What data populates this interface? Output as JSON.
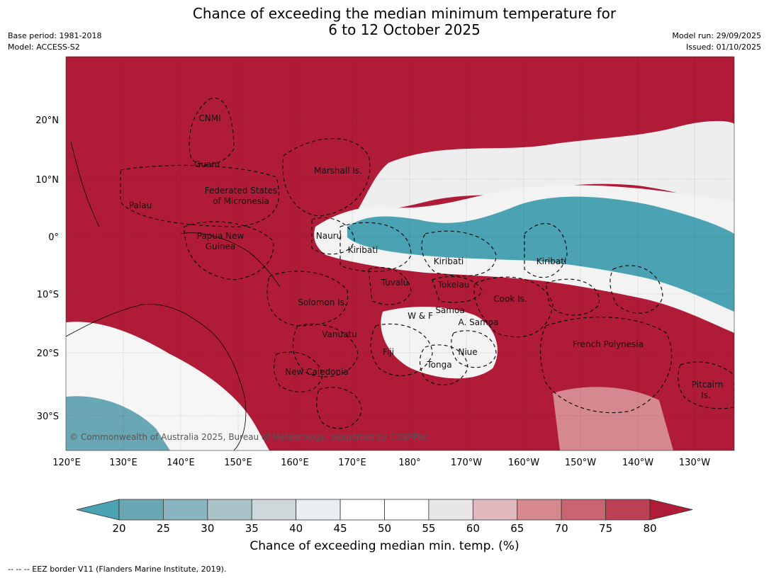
{
  "title_line1": "Chance of exceeding the median minimum temperature for",
  "title_line2": "6 to 12 October 2025",
  "left_meta": {
    "base_period": "Base period: 1981-2018",
    "model": "Model: ACCESS-S2"
  },
  "right_meta": {
    "model_run": "Model run: 29/09/2025",
    "issued": "Issued: 01/10/2025"
  },
  "map": {
    "lat_labels": [
      "20°N",
      "10°N",
      "0°",
      "10°S",
      "20°S",
      "30°S"
    ],
    "lon_labels": [
      "120°E",
      "130°E",
      "140°E",
      "150°E",
      "160°E",
      "170°E",
      "180°",
      "170°W",
      "160°W",
      "150°W",
      "140°W",
      "130°W"
    ],
    "copyright": "© Commonwealth of Australia 2025, Bureau of Meteorology, supported by COSPPac",
    "places": [
      "CNMI",
      "Guam",
      "Marshall Is.",
      "Federated States",
      "of Micronesia",
      "Palau",
      "Papua New",
      "Guinea",
      "Nauru",
      "Kiribati",
      "Kiribati",
      "Kiribati",
      "Tuvalu",
      "Tokelau",
      "Solomon Is.",
      "Cook Is.",
      "Samoa",
      "W & F",
      "A. Samoa",
      "Vanuatu",
      "Fiji",
      "Niue",
      "Tonga",
      "New Caledonia",
      "French Polynesia",
      "Pitcairn",
      "Is."
    ]
  },
  "colorbar": {
    "ticks": [
      "20",
      "25",
      "30",
      "35",
      "40",
      "45",
      "50",
      "55",
      "60",
      "65",
      "70",
      "75",
      "80"
    ],
    "colors": [
      "#4aa2b3",
      "#6aa7b5",
      "#8ab5c0",
      "#a9c4c9",
      "#ced8da",
      "#eaf0f1",
      "#ffffff",
      "#ffffff",
      "#e9e6e8",
      "#e0b8bd",
      "#d58890",
      "#c96472",
      "#bc4155",
      "#b01c38"
    ],
    "title": "Chance of exceeding median min. temp. (%)"
  },
  "footnote": "--  --  -- EEZ border V11 (Flanders Marine Institute, 2019)."
}
